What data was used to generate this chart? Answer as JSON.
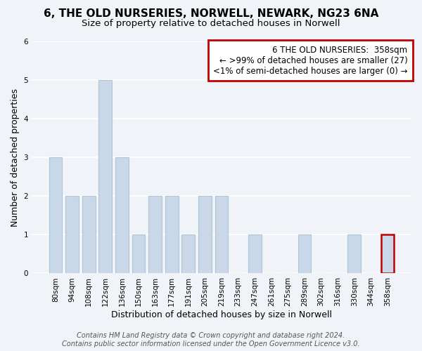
{
  "title": "6, THE OLD NURSERIES, NORWELL, NEWARK, NG23 6NA",
  "subtitle": "Size of property relative to detached houses in Norwell",
  "xlabel": "Distribution of detached houses by size in Norwell",
  "ylabel": "Number of detached properties",
  "footer_line1": "Contains HM Land Registry data © Crown copyright and database right 2024.",
  "footer_line2": "Contains public sector information licensed under the Open Government Licence v3.0.",
  "bins": [
    "80sqm",
    "94sqm",
    "108sqm",
    "122sqm",
    "136sqm",
    "150sqm",
    "163sqm",
    "177sqm",
    "191sqm",
    "205sqm",
    "219sqm",
    "233sqm",
    "247sqm",
    "261sqm",
    "275sqm",
    "289sqm",
    "302sqm",
    "316sqm",
    "330sqm",
    "344sqm",
    "358sqm"
  ],
  "counts": [
    3,
    2,
    2,
    5,
    3,
    1,
    2,
    2,
    1,
    2,
    2,
    0,
    1,
    0,
    0,
    1,
    0,
    0,
    1,
    0,
    1
  ],
  "bar_color": "#c8d8e8",
  "bar_edge_color": "#b0c4d8",
  "highlight_edge_color": "#c00000",
  "ylim": [
    0,
    6
  ],
  "yticks": [
    0,
    1,
    2,
    3,
    4,
    5,
    6
  ],
  "legend_title": "6 THE OLD NURSERIES:  358sqm",
  "legend_line1": "← >99% of detached houses are smaller (27)",
  "legend_line2": "<1% of semi-detached houses are larger (0) →",
  "legend_box_color": "#ffffff",
  "legend_box_edge_color": "#c00000",
  "background_color": "#f0f4f8",
  "grid_color": "#ffffff",
  "title_fontsize": 11,
  "subtitle_fontsize": 9.5,
  "axis_label_fontsize": 9,
  "tick_fontsize": 7.5,
  "legend_fontsize": 8.5,
  "footer_fontsize": 7
}
